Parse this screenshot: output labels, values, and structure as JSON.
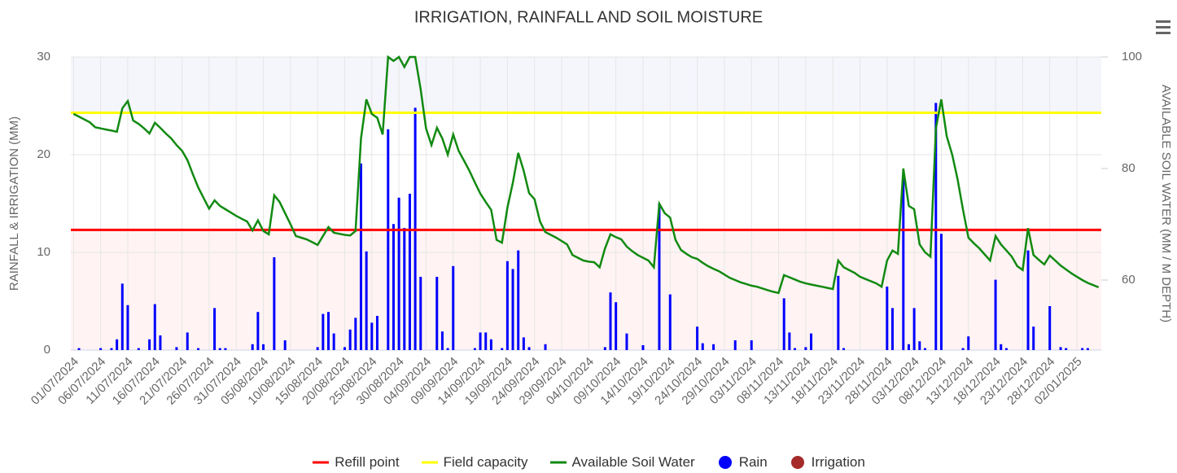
{
  "chart_data": {
    "type": "combo",
    "title": "IRRIGATION, RAINFALL AND SOIL MOISTURE",
    "y_label": "RAINFALL & IRRIGATION (MM)",
    "y2_label": "AVAILABLE SOIL WATER (MM / M DEPTH)",
    "ylim": [
      0,
      30
    ],
    "yticks": [
      0,
      10,
      20,
      30
    ],
    "y2lim": [
      47.45,
      100
    ],
    "y2ticks": [
      60,
      80,
      100
    ],
    "grid": true,
    "categories": [
      "01/07/2024",
      null,
      null,
      null,
      null,
      "06/07/2024",
      null,
      null,
      null,
      null,
      "11/07/2024",
      null,
      null,
      null,
      null,
      "16/07/2024",
      null,
      null,
      null,
      null,
      "21/07/2024",
      null,
      null,
      null,
      null,
      "26/07/2024",
      null,
      null,
      null,
      null,
      "31/07/2024",
      null,
      null,
      null,
      null,
      "05/08/2024",
      null,
      null,
      null,
      null,
      "10/08/2024",
      null,
      null,
      null,
      null,
      "15/08/2024",
      null,
      null,
      null,
      null,
      "20/08/2024",
      null,
      null,
      null,
      null,
      "25/08/2024",
      null,
      null,
      null,
      null,
      "30/08/2024",
      null,
      null,
      null,
      null,
      "04/09/2024",
      null,
      null,
      null,
      null,
      "09/09/2024",
      null,
      null,
      null,
      null,
      "14/09/2024",
      null,
      null,
      null,
      null,
      "19/09/2024",
      null,
      null,
      null,
      null,
      "24/09/2024",
      null,
      null,
      null,
      null,
      "29/09/2024",
      null,
      null,
      null,
      null,
      "04/10/2024",
      null,
      null,
      null,
      null,
      "09/10/2024",
      null,
      null,
      null,
      null,
      "14/10/2024",
      null,
      null,
      null,
      null,
      "19/10/2024",
      null,
      null,
      null,
      null,
      "24/10/2024",
      null,
      null,
      null,
      null,
      "29/10/2024",
      null,
      null,
      null,
      null,
      "03/11/2024",
      null,
      null,
      null,
      null,
      "08/11/2024",
      null,
      null,
      null,
      null,
      "13/11/2024",
      null,
      null,
      null,
      null,
      "18/11/2024",
      null,
      null,
      null,
      null,
      "23/11/2024",
      null,
      null,
      null,
      null,
      "28/11/2024",
      null,
      null,
      null,
      null,
      "03/12/2024",
      null,
      null,
      null,
      null,
      "08/12/2024",
      null,
      null,
      null,
      null,
      "13/12/2024",
      null,
      null,
      null,
      null,
      "18/12/2024",
      null,
      null,
      null,
      null,
      "23/12/2024",
      null,
      null,
      null,
      null,
      "28/12/2024",
      null,
      null,
      null,
      null,
      "02/01/2025",
      null,
      null,
      null,
      null
    ],
    "series": [
      {
        "name": "Refill point",
        "color": "#ff0000",
        "type": "plotline",
        "axis": "y2",
        "value": 69
      },
      {
        "name": "Field capacity",
        "color": "#ffff00",
        "type": "plotline",
        "axis": "y2",
        "value": 90
      },
      {
        "name": "Available Soil Water",
        "color": "#118a11",
        "type": "line",
        "axis": "y2",
        "values": [
          89.8,
          89.3,
          88.8,
          88.3,
          87.4,
          87.2,
          87,
          86.8,
          86.6,
          90.8,
          92.1,
          88.6,
          88,
          87.2,
          86.3,
          88.2,
          87.3,
          86.3,
          85.4,
          84.2,
          83.2,
          81.5,
          79,
          76.6,
          74.7,
          72.8,
          74.3,
          73.3,
          72.7,
          72.1,
          71.5,
          71,
          70.5,
          68.9,
          70.7,
          68.8,
          68.2,
          75.2,
          74,
          72,
          70,
          67.9,
          67.6,
          67.3,
          66.8,
          66.3,
          67.9,
          69.5,
          68.5,
          68.3,
          68.1,
          68,
          68.8,
          85.4,
          92.4,
          89.8,
          89.1,
          86.1,
          100,
          99.3,
          100,
          98.2,
          100,
          100,
          94.2,
          87.2,
          84.2,
          87.3,
          85.4,
          82.5,
          86.1,
          83.2,
          81.4,
          79.6,
          77.5,
          75.5,
          74,
          72.6,
          67.2,
          66.7,
          73,
          77.4,
          82.8,
          79.6,
          75.6,
          74.5,
          70.5,
          68.6,
          68.1,
          67.6,
          67,
          66.4,
          64.5,
          64,
          63.5,
          63.3,
          63.2,
          62.3,
          65.7,
          68.2,
          67.7,
          67.3,
          66,
          65.2,
          64.5,
          64,
          63.5,
          62.3,
          73.7,
          72,
          71.2,
          67.2,
          65.4,
          64.7,
          64.1,
          63.8,
          63.1,
          62.5,
          62,
          61.6,
          61,
          60.4,
          60,
          59.6,
          59.3,
          59,
          58.8,
          58.5,
          58.2,
          57.9,
          57.7,
          60.9,
          60.5,
          60.1,
          59.7,
          59.4,
          59.2,
          59,
          58.8,
          58.6,
          58.4,
          63.5,
          62.3,
          61.8,
          61.3,
          60.6,
          60.2,
          59.8,
          59.4,
          58.8,
          63.5,
          65.3,
          64.7,
          80,
          73.3,
          72.7,
          66.4,
          65,
          64.2,
          87.2,
          92.4,
          85.8,
          82.5,
          78.1,
          72.6,
          67.6,
          66.6,
          65.7,
          64.6,
          63.5,
          67.9,
          66.4,
          65.3,
          64.2,
          62.5,
          61.8,
          69.3,
          64.5,
          63.6,
          62.8,
          64.4,
          63.5,
          62.6,
          61.9,
          61.2,
          60.6,
          60,
          59.5,
          59.1,
          58.7
        ]
      },
      {
        "name": "Rain",
        "color": "#0000ff",
        "type": "column",
        "values": [
          0,
          0.2,
          0,
          0,
          0,
          0.2,
          0,
          0.2,
          1.1,
          6.8,
          4.6,
          0,
          0.2,
          0,
          1.1,
          4.7,
          1.5,
          0,
          0,
          0.3,
          0,
          1.8,
          0,
          0.2,
          0,
          0,
          4.3,
          0.2,
          0.2,
          0,
          0,
          0,
          0,
          0.6,
          3.9,
          0.6,
          0,
          9.5,
          0,
          1,
          0,
          0,
          0,
          0,
          0,
          0.3,
          3.7,
          3.9,
          1.7,
          0,
          0.3,
          2.1,
          3.3,
          19.1,
          10.1,
          2.8,
          3.5,
          0,
          22.6,
          12.9,
          15.6,
          12.5,
          16,
          24.8,
          7.5,
          0,
          0,
          7.5,
          1.9,
          0.2,
          8.6,
          0,
          0,
          0,
          0.2,
          1.8,
          1.8,
          1.1,
          0,
          0.2,
          9.1,
          8.3,
          10.2,
          1.3,
          0.3,
          0,
          0,
          0.6,
          0,
          0,
          0,
          0,
          0,
          0,
          0,
          0,
          0,
          0,
          0.3,
          5.9,
          4.9,
          0,
          1.7,
          0,
          0,
          0.5,
          0,
          0,
          15,
          0,
          5.7,
          0,
          0,
          0,
          0,
          2.4,
          0.7,
          0,
          0.6,
          0,
          0,
          0,
          1,
          0,
          0,
          1,
          0,
          0,
          0,
          0,
          0,
          5.3,
          1.8,
          0.2,
          0,
          0.3,
          1.7,
          0,
          0,
          0,
          0,
          7.6,
          0.2,
          0,
          0,
          0,
          0,
          0,
          0,
          0,
          6.5,
          4.3,
          0,
          17.8,
          0.6,
          4.3,
          0.9,
          0.2,
          0,
          25.3,
          11.9,
          0,
          0,
          0,
          0.2,
          1.4,
          0,
          0,
          0,
          0,
          7.2,
          0.6,
          0.2,
          0,
          0,
          0,
          10.2,
          2.4,
          0,
          0,
          4.5,
          0,
          0.3,
          0.2,
          0,
          0,
          0.2,
          0.2,
          0,
          0
        ]
      },
      {
        "name": "Irrigation",
        "color": "#a52a2a",
        "type": "column"
      }
    ]
  }
}
